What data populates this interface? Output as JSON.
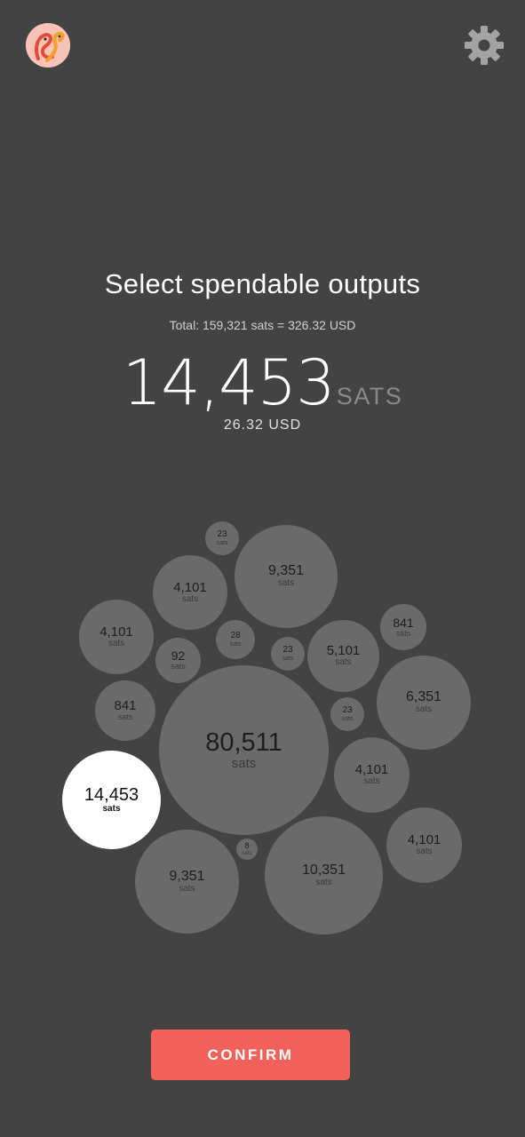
{
  "header": {
    "logo_icon": "dodo-bird-logo-icon",
    "settings_icon": "gear-icon"
  },
  "title": "Select spendable outputs",
  "total_line": "Total:  159,321 sats = 326.32 USD",
  "selected": {
    "amount": "14,453",
    "unit": "SATS",
    "fiat": "26.32 USD"
  },
  "outputs": [
    {
      "value": "23",
      "unit": "sats",
      "selected": false
    },
    {
      "value": "9,351",
      "unit": "sats",
      "selected": false
    },
    {
      "value": "4,101",
      "unit": "sats",
      "selected": false
    },
    {
      "value": "841",
      "unit": "sats",
      "selected": false
    },
    {
      "value": "4,101",
      "unit": "sats",
      "selected": false
    },
    {
      "value": "28",
      "unit": "sats",
      "selected": false
    },
    {
      "value": "23",
      "unit": "sats",
      "selected": false
    },
    {
      "value": "5,101",
      "unit": "sats",
      "selected": false
    },
    {
      "value": "92",
      "unit": "sats",
      "selected": false
    },
    {
      "value": "6,351",
      "unit": "sats",
      "selected": false
    },
    {
      "value": "841",
      "unit": "sats",
      "selected": false
    },
    {
      "value": "23",
      "unit": "sats",
      "selected": false
    },
    {
      "value": "80,511",
      "unit": "sats",
      "selected": false
    },
    {
      "value": "4,101",
      "unit": "sats",
      "selected": false
    },
    {
      "value": "14,453",
      "unit": "sats",
      "selected": true
    },
    {
      "value": "4,101",
      "unit": "sats",
      "selected": false
    },
    {
      "value": "8",
      "unit": "sats",
      "selected": false
    },
    {
      "value": "9,351",
      "unit": "sats",
      "selected": false
    },
    {
      "value": "10,351",
      "unit": "sats",
      "selected": false
    }
  ],
  "confirm_label": "CONFIRM",
  "colors": {
    "background": "#434343",
    "bubble": "#6a6a6a",
    "bubble_selected": "#ffffff",
    "accent": "#f2625a"
  }
}
